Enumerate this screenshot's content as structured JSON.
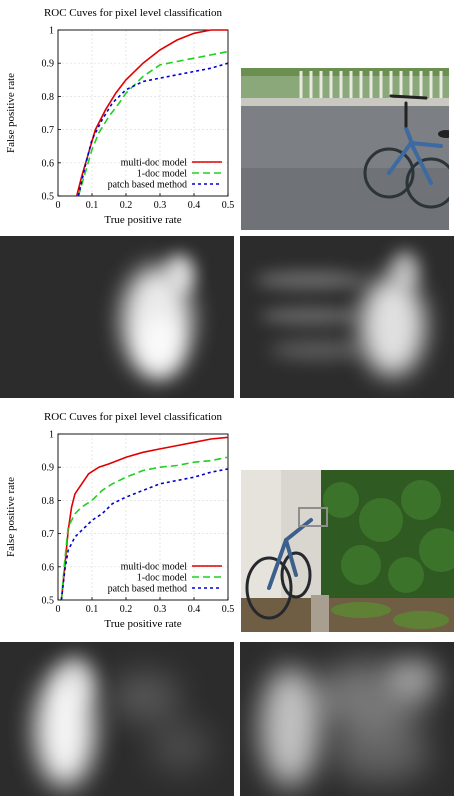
{
  "chart_data": [
    {
      "type": "line",
      "title": "ROC Cuves for pixel level classification",
      "xlabel": "True positive rate",
      "ylabel": "False positive rate",
      "xlim": [
        0,
        0.5
      ],
      "ylim": [
        0.5,
        1
      ],
      "xticks": [
        "0",
        "0.1",
        "0.2",
        "0.3",
        "0.4",
        "0.5"
      ],
      "yticks": [
        "0.5",
        "0.6",
        "0.7",
        "0.8",
        "0.9",
        "1"
      ],
      "grid": true,
      "legend_position": "bottom-right",
      "series": [
        {
          "name": "multi-doc model",
          "color": "#e00000",
          "dash": "solid",
          "x": [
            0.055,
            0.07,
            0.09,
            0.11,
            0.14,
            0.17,
            0.2,
            0.25,
            0.3,
            0.35,
            0.4,
            0.45,
            0.5
          ],
          "y": [
            0.5,
            0.56,
            0.63,
            0.7,
            0.76,
            0.81,
            0.85,
            0.9,
            0.94,
            0.97,
            0.99,
            1.0,
            1.0
          ]
        },
        {
          "name": "1-doc model",
          "color": "#20d020",
          "dash": "dashed",
          "x": [
            0.06,
            0.08,
            0.1,
            0.12,
            0.15,
            0.18,
            0.2,
            0.25,
            0.3,
            0.35,
            0.4,
            0.45,
            0.5
          ],
          "y": [
            0.5,
            0.57,
            0.64,
            0.69,
            0.74,
            0.78,
            0.81,
            0.86,
            0.895,
            0.905,
            0.915,
            0.925,
            0.935
          ]
        },
        {
          "name": "patch based method",
          "color": "#0000d0",
          "dash": "dotted",
          "x": [
            0.06,
            0.08,
            0.1,
            0.13,
            0.16,
            0.2,
            0.25,
            0.3,
            0.35,
            0.4,
            0.45,
            0.5
          ],
          "y": [
            0.5,
            0.59,
            0.67,
            0.73,
            0.78,
            0.82,
            0.845,
            0.855,
            0.865,
            0.875,
            0.885,
            0.9
          ]
        }
      ]
    },
    {
      "type": "line",
      "title": "ROC Cuves for pixel level classification",
      "xlabel": "True positive rate",
      "ylabel": "False positive rate",
      "xlim": [
        0,
        0.5
      ],
      "ylim": [
        0.5,
        1
      ],
      "xticks": [
        "0",
        "0.1",
        "0.2",
        "0.3",
        "0.4",
        "0.5"
      ],
      "yticks": [
        "0.5",
        "0.6",
        "0.7",
        "0.8",
        "0.9",
        "1"
      ],
      "grid": true,
      "legend_position": "bottom-right",
      "series": [
        {
          "name": "multi-doc model",
          "color": "#e00000",
          "dash": "solid",
          "x": [
            0.01,
            0.02,
            0.03,
            0.04,
            0.05,
            0.07,
            0.09,
            0.12,
            0.15,
            0.2,
            0.25,
            0.3,
            0.35,
            0.4,
            0.45,
            0.5
          ],
          "y": [
            0.5,
            0.6,
            0.71,
            0.78,
            0.82,
            0.85,
            0.88,
            0.9,
            0.91,
            0.93,
            0.945,
            0.955,
            0.965,
            0.975,
            0.985,
            0.99
          ]
        },
        {
          "name": "1-doc model",
          "color": "#20d020",
          "dash": "dashed",
          "x": [
            0.01,
            0.02,
            0.03,
            0.05,
            0.07,
            0.1,
            0.13,
            0.16,
            0.2,
            0.25,
            0.3,
            0.35,
            0.4,
            0.45,
            0.5
          ],
          "y": [
            0.5,
            0.62,
            0.72,
            0.76,
            0.78,
            0.8,
            0.83,
            0.85,
            0.87,
            0.89,
            0.9,
            0.905,
            0.915,
            0.92,
            0.93
          ]
        },
        {
          "name": "patch based method",
          "color": "#0000d0",
          "dash": "dotted",
          "x": [
            0.01,
            0.02,
            0.03,
            0.05,
            0.08,
            0.1,
            0.13,
            0.16,
            0.2,
            0.25,
            0.3,
            0.35,
            0.4,
            0.45,
            0.5
          ],
          "y": [
            0.5,
            0.59,
            0.65,
            0.69,
            0.72,
            0.74,
            0.76,
            0.79,
            0.81,
            0.83,
            0.85,
            0.86,
            0.87,
            0.885,
            0.895
          ]
        }
      ]
    }
  ],
  "figures": {
    "photo_top": "bicycle-on-road-photo",
    "photo_bottom": "bicycle-by-hedge-photo",
    "heatmaps": [
      "heatmap-1",
      "heatmap-2",
      "heatmap-3",
      "heatmap-4"
    ]
  }
}
